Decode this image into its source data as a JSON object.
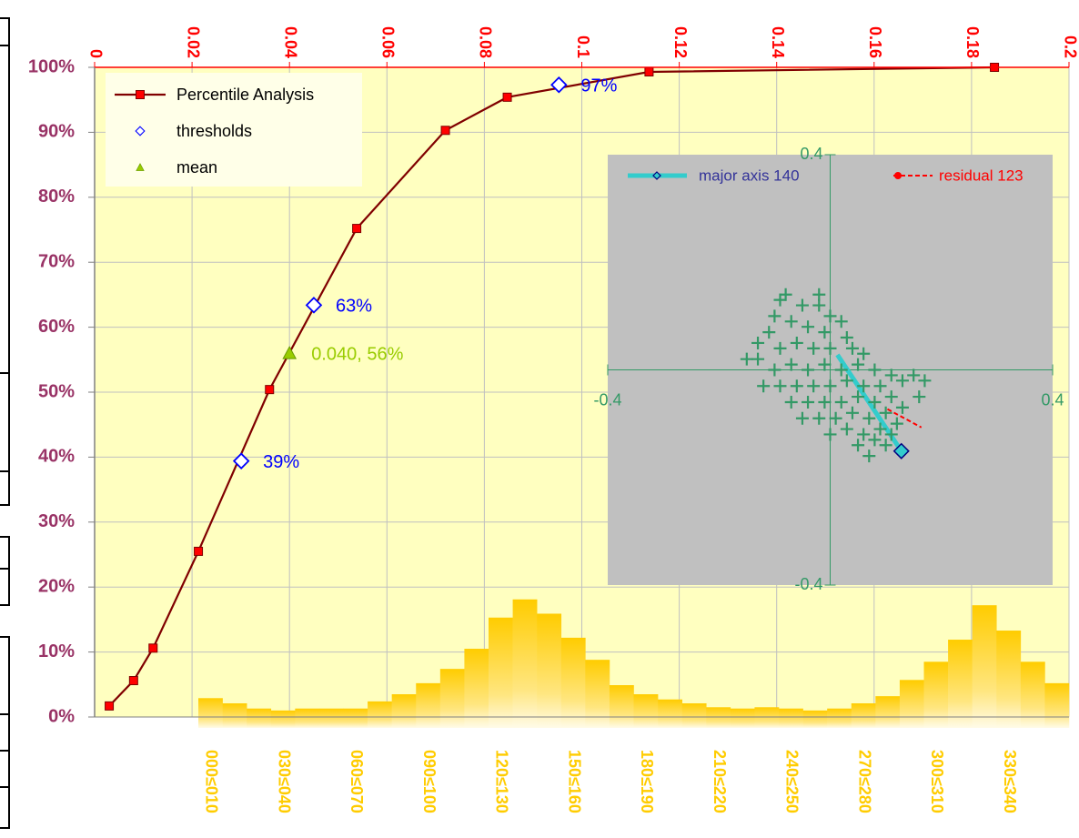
{
  "chart_data": [
    {
      "type": "line",
      "xlim": [
        0,
        0.2
      ],
      "xticks": [
        0,
        0.02,
        0.04,
        0.06,
        0.08,
        0.1,
        0.12,
        0.14,
        0.16,
        0.18,
        0.2
      ],
      "ylim": [
        0,
        100
      ],
      "yticks": [
        {
          "value": 0,
          "label": "0%"
        },
        {
          "value": 10,
          "label": "10%"
        },
        {
          "value": 20,
          "label": "20%"
        },
        {
          "value": 30,
          "label": "30%"
        },
        {
          "value": 40,
          "label": "40%"
        },
        {
          "value": 50,
          "label": "50%"
        },
        {
          "value": 60,
          "label": "60%"
        },
        {
          "value": 70,
          "label": "70%"
        },
        {
          "value": 80,
          "label": "80%"
        },
        {
          "value": 90,
          "label": "90%"
        },
        {
          "value": 100,
          "label": "100%"
        }
      ],
      "grid": true,
      "legend": "upper left",
      "series": [
        {
          "name": "Percentile Analysis",
          "type": "line",
          "color": "#800000",
          "marker_color": "#ff0000",
          "x": [
            0.003,
            0.008,
            0.012,
            0.0213,
            0.0359,
            0.0538,
            0.072,
            0.0847,
            0.1138,
            0.1847
          ],
          "values": [
            1.7,
            5.6,
            10.6,
            25.5,
            50.4,
            75.2,
            90.3,
            95.4,
            99.3,
            100
          ]
        },
        {
          "name": "thresholds",
          "type": "scatter",
          "marker": "diamond",
          "color": "#0000ff",
          "x": [
            0.0301,
            0.045,
            0.0953
          ],
          "values": [
            39.4,
            63.4,
            97.3
          ],
          "value_labels": [
            "39%",
            "63%",
            "97%"
          ]
        },
        {
          "name": "mean",
          "type": "scatter",
          "marker": "triangle",
          "color": "#99cc00",
          "x": [
            0.04
          ],
          "values": [
            56
          ],
          "value_labels": [
            "0.040, 56%"
          ]
        }
      ]
    },
    {
      "type": "bar",
      "color": "#ffcc00",
      "ylim": [
        0,
        100
      ],
      "categories": [
        "000≤010",
        null,
        null,
        "030≤040",
        null,
        null,
        "060≤070",
        null,
        null,
        "090≤100",
        null,
        null,
        "120≤130",
        null,
        null,
        "150≤160",
        null,
        null,
        "180≤190",
        null,
        null,
        "210≤220",
        null,
        null,
        "240≤250",
        null,
        null,
        "270≤280",
        null,
        null,
        "300≤310",
        null,
        null,
        "330≤340",
        null,
        null
      ],
      "values": [
        2.9,
        2.1,
        1.3,
        1.0,
        1.3,
        1.3,
        1.3,
        2.4,
        3.5,
        5.2,
        7.4,
        10.5,
        15.3,
        18.1,
        15.9,
        12.2,
        8.8,
        4.9,
        3.5,
        2.7,
        2.1,
        1.5,
        1.3,
        1.5,
        1.3,
        1.0,
        1.3,
        2.1,
        3.2,
        5.7,
        8.5,
        11.9,
        17.2,
        13.3,
        8.5,
        5.2
      ]
    },
    {
      "type": "scatter",
      "color": "#339966",
      "xlim": [
        -0.4,
        0.4
      ],
      "ylim": [
        -0.4,
        0.4
      ],
      "xticks": [
        -0.4,
        0.4
      ],
      "yticks": [
        -0.4,
        0.4
      ],
      "points": {
        "x": [
          -0.09,
          -0.05,
          -0.02,
          0.0,
          -0.1,
          -0.11,
          -0.07,
          -0.04,
          -0.01,
          0.02,
          0.03,
          -0.13,
          -0.09,
          -0.06,
          -0.03,
          0.0,
          0.04,
          0.06,
          -0.1,
          -0.07,
          -0.04,
          -0.01,
          0.02,
          0.05,
          0.08,
          0.11,
          -0.09,
          -0.06,
          -0.03,
          0.0,
          0.03,
          0.06,
          0.09,
          0.13,
          -0.07,
          -0.04,
          -0.01,
          0.02,
          0.05,
          0.08,
          0.11,
          0.15,
          -0.05,
          -0.02,
          0.01,
          0.04,
          0.07,
          0.1,
          0.13,
          0.0,
          0.03,
          0.06,
          0.09,
          0.12,
          0.05,
          0.08,
          0.1,
          -0.13,
          -0.12,
          -0.15,
          0.17,
          0.16,
          -0.08,
          -0.02,
          0.07,
          0.11
        ],
        "values": [
          0.13,
          0.12,
          0.12,
          0.1,
          0.1,
          0.07,
          0.09,
          0.08,
          0.07,
          0.09,
          0.06,
          0.02,
          0.04,
          0.05,
          0.04,
          0.04,
          0.04,
          0.03,
          0.0,
          0.01,
          0.0,
          0.01,
          0.0,
          0.01,
          0.0,
          -0.01,
          -0.03,
          -0.03,
          -0.03,
          -0.03,
          -0.02,
          -0.03,
          -0.03,
          -0.02,
          -0.06,
          -0.06,
          -0.06,
          -0.06,
          -0.05,
          -0.06,
          -0.05,
          -0.01,
          -0.09,
          -0.09,
          -0.09,
          -0.08,
          -0.09,
          -0.08,
          -0.07,
          -0.12,
          -0.11,
          -0.12,
          -0.11,
          -0.1,
          -0.14,
          -0.13,
          -0.14,
          0.05,
          -0.03,
          0.02,
          -0.02,
          -0.05,
          0.14,
          0.14,
          -0.16,
          -0.12
        ]
      },
      "series": [
        {
          "name": "major axis 140",
          "color": "#33cccc",
          "x": [
            0.013,
            0.128
          ],
          "values": [
            0.028,
            -0.151
          ]
        },
        {
          "name": "residual 123",
          "color": "#ff0000",
          "x": [
            0.103,
            0.164
          ],
          "values": [
            -0.073,
            -0.107
          ]
        }
      ]
    }
  ]
}
